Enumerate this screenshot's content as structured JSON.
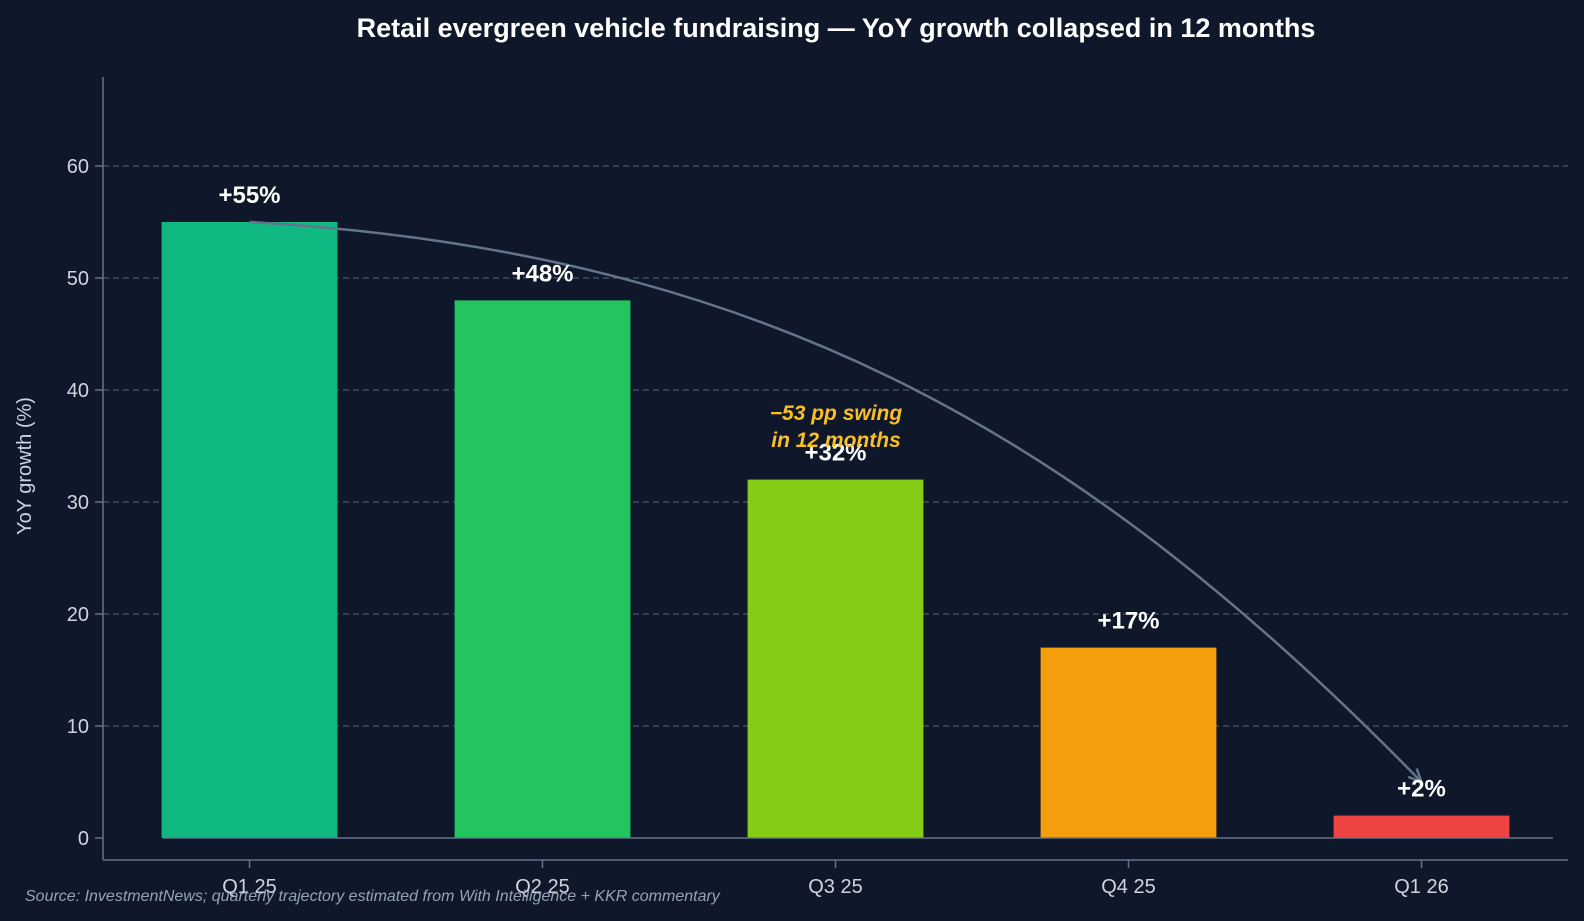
{
  "chart_data": {
    "type": "bar",
    "title": "Retail evergreen vehicle fundraising — YoY growth collapsed in 12 months",
    "xlabel": "",
    "ylabel": "YoY growth (%)",
    "categories": [
      "Q1 25",
      "Q2 25",
      "Q3 25",
      "Q4 25",
      "Q1 26"
    ],
    "values": [
      55,
      48,
      32,
      17,
      2
    ],
    "value_labels": [
      "+55%",
      "+48%",
      "+32%",
      "+17%",
      "+2%"
    ],
    "bar_colors": [
      "#10b981",
      "#22c55e",
      "#84cc16",
      "#f59e0b",
      "#ef4444"
    ],
    "ylim": [
      -2,
      68
    ],
    "yticks": [
      0,
      10,
      20,
      30,
      40,
      50,
      60
    ],
    "grid": true,
    "annotation": {
      "lines": [
        "−53 pp swing",
        "in 12 months"
      ],
      "color": "#fbbf24",
      "arrow_from": {
        "category": "Q1 25",
        "value": 55
      },
      "arrow_to": {
        "category": "Q1 26",
        "value": 5
      }
    },
    "source": "Source: InvestmentNews; quarterly trajectory estimated from With Intelligence + KKR commentary"
  }
}
